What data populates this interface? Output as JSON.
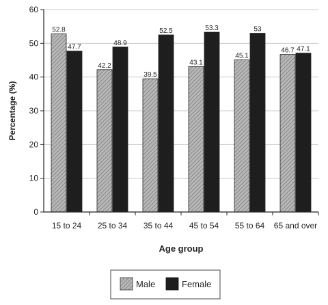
{
  "chart_data": {
    "type": "bar",
    "title": "",
    "xlabel": "Age group",
    "ylabel": "Percentage (%)",
    "ylim": [
      0,
      60
    ],
    "yticks": [
      0,
      10,
      20,
      30,
      40,
      50,
      60
    ],
    "grid": true,
    "legend_position": "bottom-center",
    "categories": [
      "15 to 24",
      "25 to 34",
      "35 to 44",
      "45 to 54",
      "55 to 64",
      "65 and over"
    ],
    "series": [
      {
        "name": "Male",
        "values": [
          52.8,
          42.2,
          39.5,
          43.1,
          45.1,
          46.7
        ],
        "labels": [
          "52.8",
          "42.2",
          "39.5",
          "43.1",
          "45.1",
          "46.7"
        ],
        "pattern": "hatched-gray"
      },
      {
        "name": "Female",
        "values": [
          47.7,
          48.9,
          52.5,
          53.3,
          53,
          47.1
        ],
        "labels": [
          "47.7",
          "48.9",
          "52.5",
          "53.3",
          "53",
          "47.1"
        ],
        "pattern": "solid-black"
      }
    ],
    "colors": {
      "male_fill": "#b8b8b8",
      "male_hatch": "#7a7a7a",
      "female_fill": "#1e1e1e",
      "axis": "#222222",
      "grid": "#c8c8c8"
    }
  }
}
